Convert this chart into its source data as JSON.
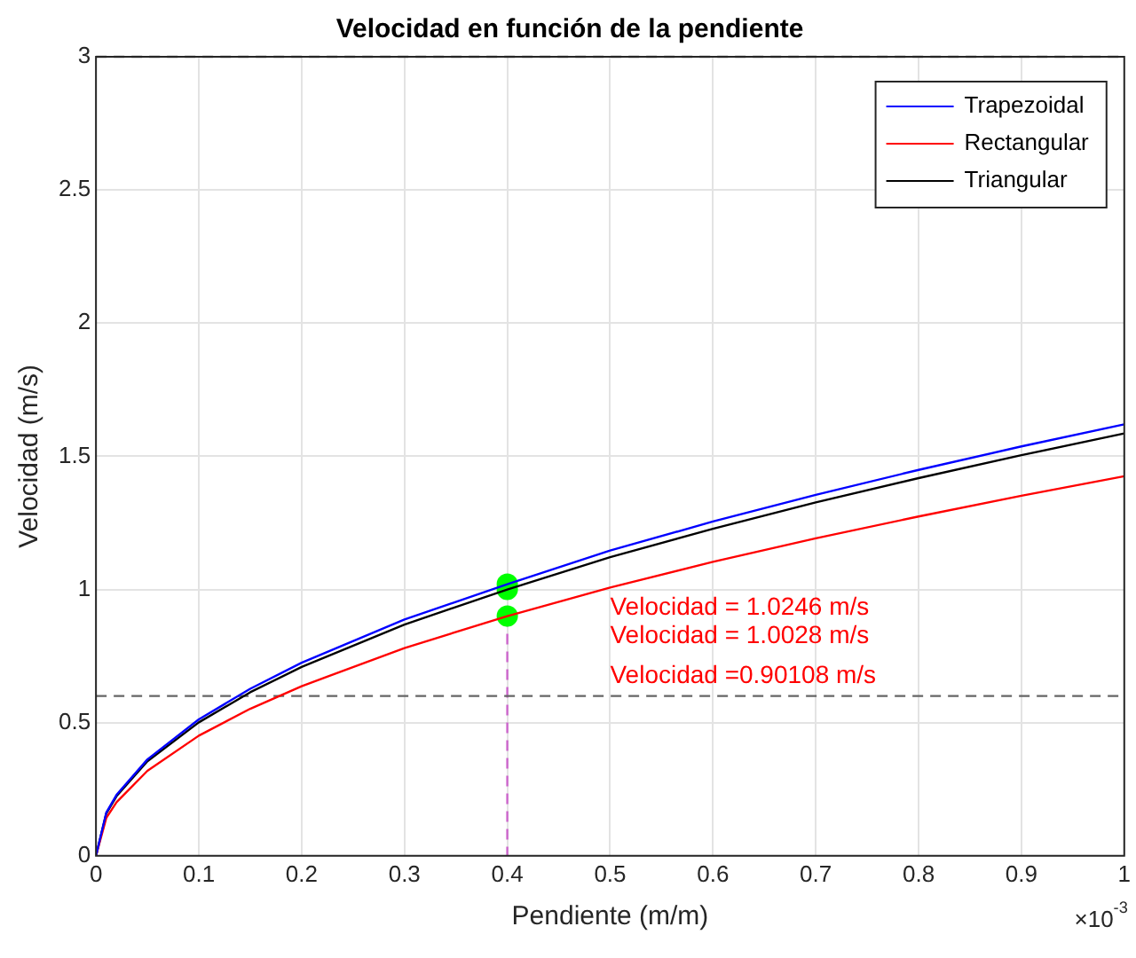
{
  "chart_data": {
    "type": "line",
    "title": "Velocidad en función de la pendiente",
    "xlabel": "Pendiente (m/m)",
    "ylabel": "Velocidad (m/s)",
    "xlim": [
      0,
      1
    ],
    "xticks": [
      0,
      0.1,
      0.2,
      0.3,
      0.4,
      0.5,
      0.6,
      0.7,
      0.8,
      0.9,
      1
    ],
    "ylim": [
      0,
      3
    ],
    "yticks": [
      0,
      0.5,
      1,
      1.5,
      2,
      2.5,
      3
    ],
    "x": [
      0,
      0.01,
      0.02,
      0.05,
      0.1,
      0.15,
      0.2,
      0.3,
      0.4,
      0.5,
      0.6,
      0.7,
      0.8,
      0.9,
      1
    ],
    "series": [
      {
        "name": "Trapezoidal",
        "color": "#0000ff",
        "values": [
          0,
          0.162,
          0.229,
          0.362,
          0.512,
          0.627,
          0.725,
          0.887,
          1.02,
          1.146,
          1.255,
          1.355,
          1.449,
          1.537,
          1.62
        ]
      },
      {
        "name": "Rectangular",
        "color": "#ff0000",
        "values": [
          0,
          0.142,
          0.201,
          0.319,
          0.451,
          0.552,
          0.637,
          0.78,
          0.9,
          1.007,
          1.104,
          1.192,
          1.274,
          1.352,
          1.425
        ]
      },
      {
        "name": "Triangular",
        "color": "#000000",
        "values": [
          0,
          0.159,
          0.224,
          0.355,
          0.501,
          0.614,
          0.709,
          0.868,
          1,
          1.121,
          1.228,
          1.327,
          1.418,
          1.504,
          1.586
        ]
      },
      {
        "type": "scatter",
        "color": "#00ff00",
        "marker": "circle",
        "values": [
          null,
          null,
          null,
          null,
          null,
          null,
          null,
          null,
          1.02,
          null,
          null,
          null,
          null,
          null,
          null
        ]
      },
      {
        "type": "scatter",
        "color": "#00ff00",
        "marker": "circle",
        "values": [
          null,
          null,
          null,
          null,
          null,
          null,
          null,
          null,
          1,
          null,
          null,
          null,
          null,
          null,
          null
        ]
      },
      {
        "type": "scatter",
        "color": "#00ff00",
        "marker": "circle",
        "values": [
          null,
          null,
          null,
          null,
          null,
          null,
          null,
          null,
          0.9,
          null,
          null,
          null,
          null,
          null,
          null
        ]
      }
    ],
    "ref_lines": [
      {
        "axis": "x",
        "value": 0.4,
        "color": "#cc66cc",
        "line_style": "dashed"
      },
      {
        "axis": "y",
        "value": 3,
        "color": "#666666",
        "line_style": "dashed"
      },
      {
        "axis": "y",
        "value": 0.6,
        "color": "#666666",
        "line_style": "dashed"
      }
    ],
    "annotations": [
      "Velocidad = 1.0246 m/s",
      "Velocidad = 1.0028 m/s",
      "Velocidad =0.90108 m/s",
      "×10$^{-3}$"
    ],
    "grid": true,
    "legend": "top right",
    "marker": "none",
    "line_style": "solid"
  }
}
